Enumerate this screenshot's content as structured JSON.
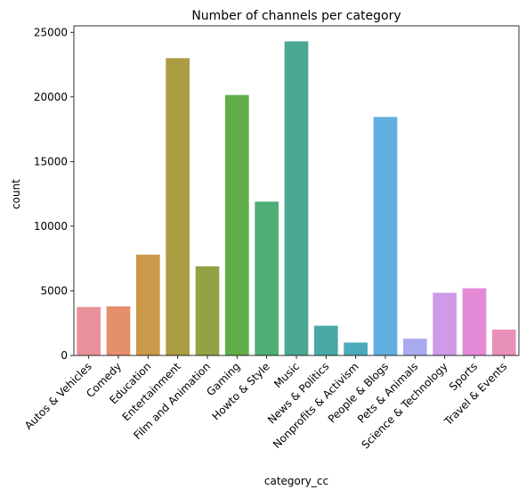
{
  "chart_data": {
    "type": "bar",
    "title": "Number of channels per category",
    "xlabel": "category_cc",
    "ylabel": "count",
    "ylim": [
      0,
      25500
    ],
    "yticks": [
      0,
      5000,
      10000,
      15000,
      20000,
      25000
    ],
    "grid": false,
    "categories": [
      "Autos & Vehicles",
      "Comedy",
      "Education",
      "Entertainment",
      "Film and Animation",
      "Gaming",
      "Howto & Style",
      "Music",
      "News & Politics",
      "Nonprofits & Activism",
      "People & Blogs",
      "Pets & Animals",
      "Science & Technology",
      "Sports",
      "Travel & Events"
    ],
    "values": [
      3750,
      3800,
      7800,
      23000,
      6900,
      20150,
      11900,
      24300,
      2300,
      1000,
      18450,
      1300,
      4850,
      5200,
      2000
    ],
    "colors": [
      "#e8919a",
      "#e58f6d",
      "#cc9948",
      "#ab9c44",
      "#91a345",
      "#5fae4a",
      "#4fad76",
      "#4aa893",
      "#4aa8a6",
      "#4caabd",
      "#63aee0",
      "#aaaaee",
      "#d09ae6",
      "#e58ad6",
      "#e890b8"
    ]
  }
}
